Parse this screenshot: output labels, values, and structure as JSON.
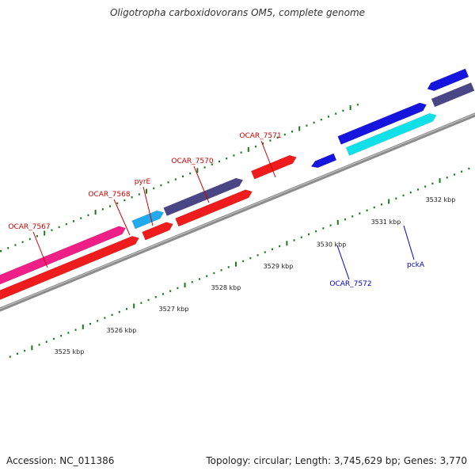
{
  "title": "Oligotropha carboxidovorans OM5, complete genome",
  "footer": {
    "accession": "Accession: NC_011386",
    "topology": "Topology: circular; Length: 3,745,629 bp; Genes: 3,770"
  },
  "ticks": [
    {
      "label": "3525 kbp"
    },
    {
      "label": "3526 kbp"
    },
    {
      "label": "3527 kbp"
    },
    {
      "label": "3528 kbp"
    },
    {
      "label": "3529 kbp"
    },
    {
      "label": "3530 kbp"
    },
    {
      "label": "3531 kbp"
    },
    {
      "label": "3532 kbp"
    }
  ],
  "genes": [
    {
      "label": "OCAR_7567",
      "strand": "+",
      "color": "#ee1f86"
    },
    {
      "label": "OCAR_7568",
      "strand": "+",
      "color": "#22aaee"
    },
    {
      "label": "pyrE",
      "strand": "+",
      "color": "#22aaee"
    },
    {
      "label": "OCAR_7570",
      "strand": "+",
      "color": "#4a4585"
    },
    {
      "label": "OCAR_7571",
      "strand": "+",
      "color": "#ee1c1c"
    },
    {
      "label": "OCAR_7572",
      "strand": "-",
      "color": "#1515dd"
    },
    {
      "label": "pckA",
      "strand": "-",
      "color": "#11e0e8"
    }
  ],
  "colors": {
    "feature_red": "#ee1c1c",
    "forward_label": "#cc0000",
    "reverse_label": "#0000cc",
    "backbone": "#8c8c8c",
    "ticks": "#1a7a1a",
    "dark_slate": "#4a4585",
    "blue": "#1515dd"
  }
}
